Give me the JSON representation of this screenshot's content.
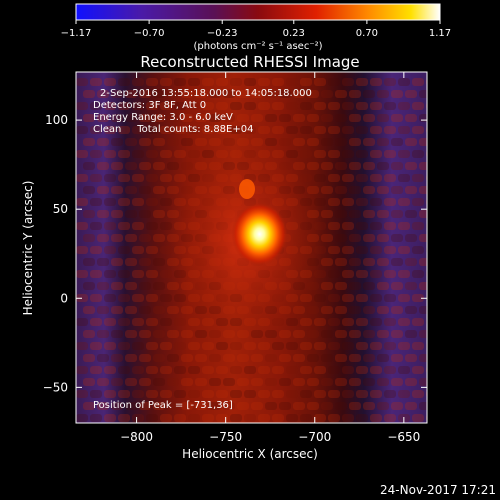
{
  "chart_data": {
    "type": "heatmap",
    "title": "Reconstructed RHESSI Image",
    "xlabel": "Heliocentric X (arcsec)",
    "ylabel": "Heliocentric Y (arcsec)",
    "xlim": [
      -834,
      -637
    ],
    "ylim": [
      -70,
      127
    ],
    "x_ticks": [
      -800,
      -750,
      -700,
      -650
    ],
    "x_tick_labels": [
      "−800",
      "−750",
      "−700",
      "−650"
    ],
    "y_ticks": [
      -50,
      0,
      50,
      100
    ],
    "y_tick_labels": [
      "−50",
      "0",
      "50",
      "100"
    ],
    "colorbar": {
      "range": [
        -1.17,
        1.17
      ],
      "ticks": [
        -1.17,
        -0.7,
        -0.23,
        0.23,
        0.7,
        1.17
      ],
      "tick_labels": [
        "−1.17",
        "−0.70",
        "−0.23",
        "0.23",
        "0.70",
        "1.17"
      ],
      "unit": "(photons cm⁻² s⁻¹ asec⁻²)",
      "colormap": "blue-purple-red-yellow-white"
    },
    "annotations": {
      "time": "2-Sep-2016 13:55:18.000 to 14:05:18.000",
      "detectors": "Detectors: 3F 8F, Att 0",
      "energy": "Energy Range: 3.0 - 6.0 keV",
      "clean": "Clean     Total counts: 8.88E+04",
      "peak": "Position of Peak = [-731,36]"
    },
    "peak": {
      "x": -731,
      "y": 36
    },
    "timestamp": "24-Nov-2017 17:21"
  }
}
